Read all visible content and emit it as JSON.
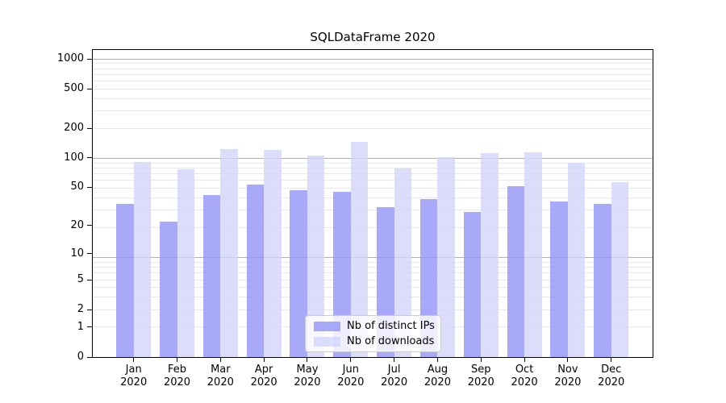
{
  "chart_data": {
    "type": "bar",
    "title": "SQLDataFrame 2020",
    "categories": [
      "Jan",
      "Feb",
      "Mar",
      "Apr",
      "May",
      "Jun",
      "Jul",
      "Aug",
      "Sep",
      "Oct",
      "Nov",
      "Dec"
    ],
    "x_tick_year": "2020",
    "series": [
      {
        "name": "Nb of distinct IPs",
        "color": "rgba(147,147,249,0.8)",
        "values": [
          34,
          22,
          42,
          53,
          47,
          45,
          31,
          38,
          28,
          51,
          36,
          34
        ]
      },
      {
        "name": "Nb of downloads",
        "color": "rgba(211,211,250,0.8)",
        "values": [
          90,
          76,
          122,
          120,
          105,
          145,
          78,
          101,
          112,
          113,
          89,
          57
        ]
      }
    ],
    "yscale": "log1p",
    "y_tick_values": [
      1000,
      500,
      200,
      100,
      50,
      20,
      10,
      5,
      2,
      1,
      0
    ],
    "ylim": [
      0,
      1230
    ],
    "grid": {
      "major_lines": [
        9,
        99,
        999
      ],
      "minor_lines": "2..9 per decade in (1+v) space",
      "major_color": "#b0b0b0",
      "minor_color": "#e8e8e8"
    },
    "legend": {
      "position": "lower center",
      "labels": [
        "Nb of distinct IPs",
        "Nb of downloads"
      ]
    }
  }
}
